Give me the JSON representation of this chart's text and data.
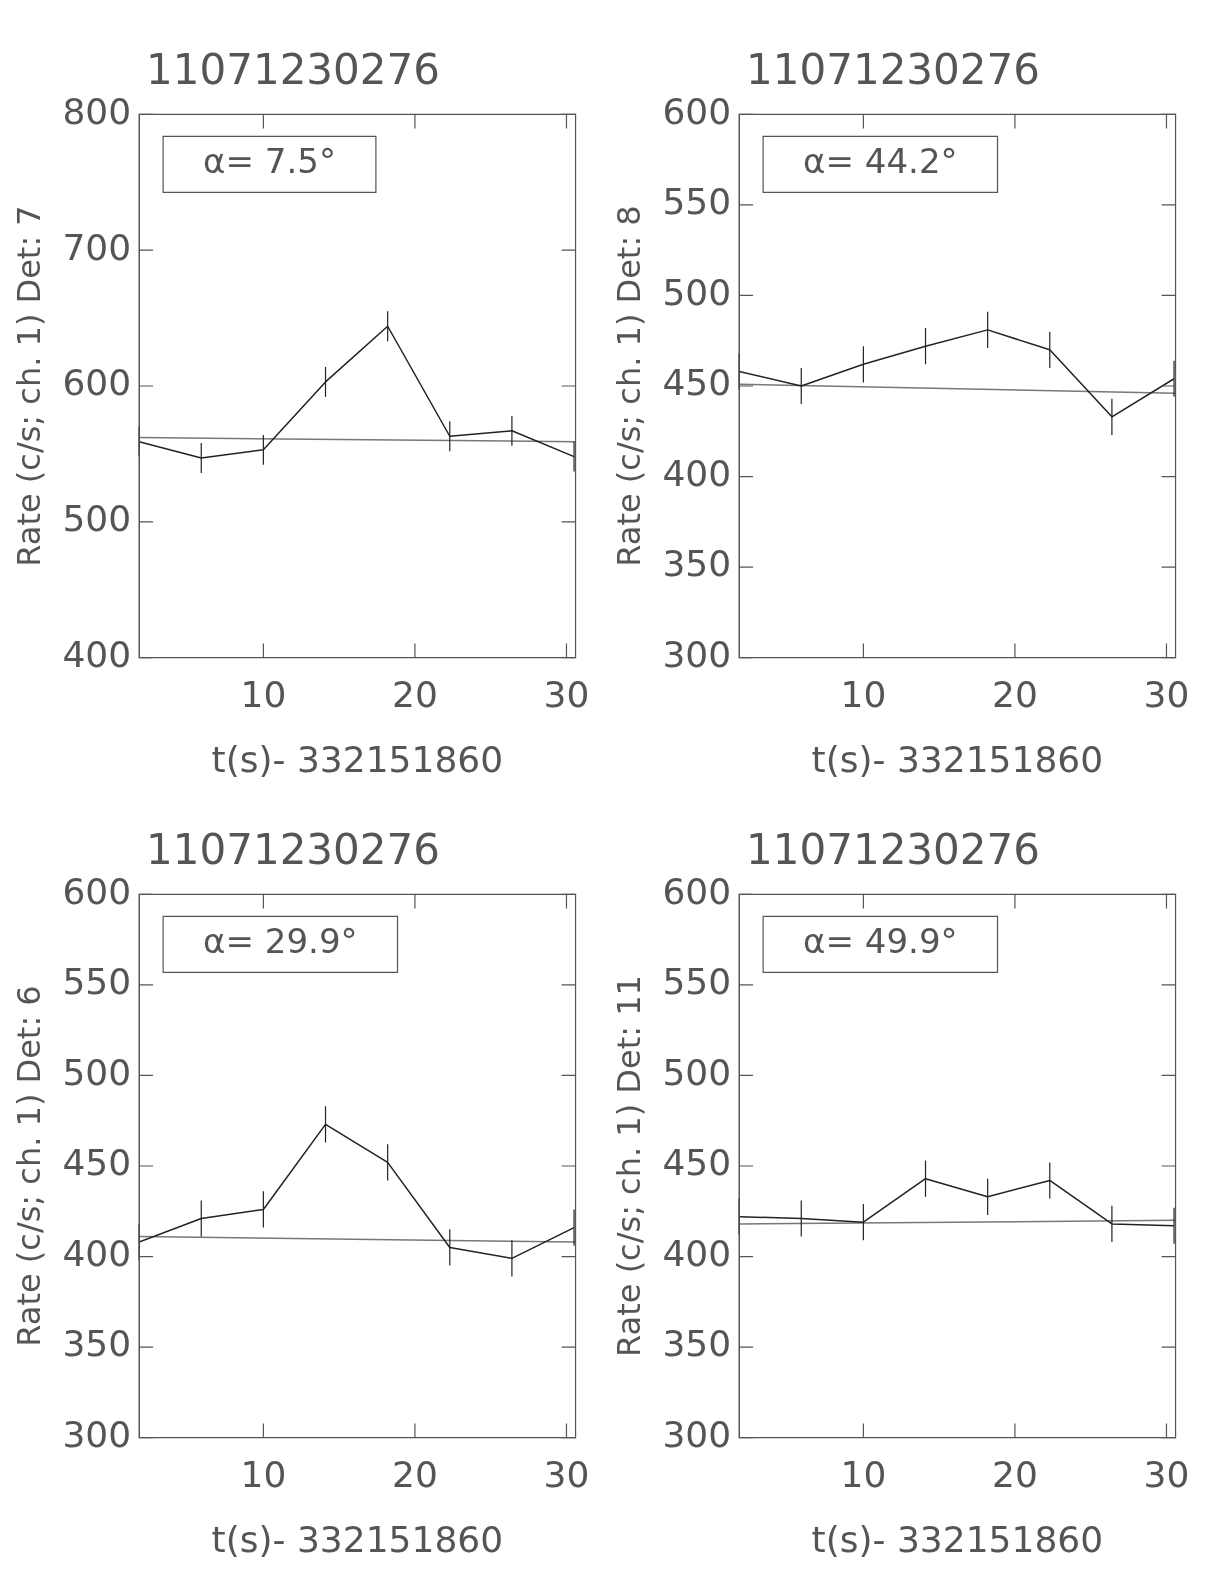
{
  "chart_data": [
    {
      "type": "line",
      "title": "11071230276",
      "xlabel": "t(s)- 332151860",
      "ylabel": "Rate (c/s; ch. 1) Det: 7",
      "annotations": [
        "α= 7.5°"
      ],
      "xlim": [
        1.8,
        30.6
      ],
      "xticks": [
        10,
        20,
        30
      ],
      "ylim": [
        400,
        800
      ],
      "yticks": [
        400,
        500,
        600,
        700,
        800
      ],
      "legend": false,
      "grid": false,
      "marker": "none",
      "series": [
        {
          "color": "#222222",
          "x": [
            1.8,
            5.9,
            10.0,
            14.1,
            18.2,
            22.3,
            26.4,
            30.5
          ],
          "values": [
            559,
            547,
            553,
            603,
            644,
            563,
            567,
            548
          ],
          "errors": [
            11,
            11,
            11,
            11,
            11,
            11,
            11,
            11
          ]
        },
        {
          "color": "#777777",
          "x": [
            1.8,
            30.6
          ],
          "values": [
            562,
            559
          ]
        }
      ]
    },
    {
      "type": "line",
      "title": "11071230276",
      "xlabel": "t(s)- 332151860",
      "ylabel": "Rate (c/s; ch. 1) Det: 8",
      "annotations": [
        "α= 44.2°"
      ],
      "xlim": [
        1.8,
        30.6
      ],
      "xticks": [
        10,
        20,
        30
      ],
      "ylim": [
        300,
        600
      ],
      "yticks": [
        300,
        350,
        400,
        450,
        500,
        550,
        600
      ],
      "legend": false,
      "grid": false,
      "marker": "none",
      "series": [
        {
          "color": "#222222",
          "x": [
            1.8,
            5.9,
            10.0,
            14.1,
            18.2,
            22.3,
            26.4,
            30.5
          ],
          "values": [
            458,
            450,
            462,
            472,
            481,
            470,
            433,
            454
          ],
          "errors": [
            10,
            10,
            10,
            10,
            10,
            10,
            10,
            10
          ]
        },
        {
          "color": "#777777",
          "x": [
            1.8,
            30.6
          ],
          "values": [
            451,
            446
          ]
        }
      ]
    },
    {
      "type": "line",
      "title": "11071230276",
      "xlabel": "t(s)- 332151860",
      "ylabel": "Rate (c/s; ch. 1) Det: 6",
      "annotations": [
        "α= 29.9°"
      ],
      "xlim": [
        1.8,
        30.6
      ],
      "xticks": [
        10,
        20,
        30
      ],
      "ylim": [
        300,
        600
      ],
      "yticks": [
        300,
        350,
        400,
        450,
        500,
        550,
        600
      ],
      "legend": false,
      "grid": false,
      "marker": "none",
      "series": [
        {
          "color": "#222222",
          "x": [
            1.8,
            5.9,
            10.0,
            14.1,
            18.2,
            22.3,
            26.4,
            30.5
          ],
          "values": [
            408,
            421,
            426,
            473,
            452,
            405,
            399,
            416
          ],
          "errors": [
            10,
            10,
            10,
            10,
            10,
            10,
            10,
            10
          ]
        },
        {
          "color": "#777777",
          "x": [
            1.8,
            30.6
          ],
          "values": [
            411,
            408
          ]
        }
      ]
    },
    {
      "type": "line",
      "title": "11071230276",
      "xlabel": "t(s)- 332151860",
      "ylabel": "Rate (c/s; ch. 1) Det: 11",
      "annotations": [
        "α= 49.9°"
      ],
      "xlim": [
        1.8,
        30.6
      ],
      "xticks": [
        10,
        20,
        30
      ],
      "ylim": [
        300,
        600
      ],
      "yticks": [
        300,
        350,
        400,
        450,
        500,
        550,
        600
      ],
      "legend": false,
      "grid": false,
      "marker": "none",
      "series": [
        {
          "color": "#222222",
          "x": [
            1.8,
            5.9,
            10.0,
            14.1,
            18.2,
            22.3,
            26.4,
            30.5
          ],
          "values": [
            422,
            421,
            419,
            443,
            433,
            442,
            418,
            417
          ],
          "errors": [
            10,
            10,
            10,
            10,
            10,
            10,
            10,
            10
          ]
        },
        {
          "color": "#777777",
          "x": [
            1.8,
            30.6
          ],
          "values": [
            418,
            420
          ]
        }
      ]
    }
  ]
}
